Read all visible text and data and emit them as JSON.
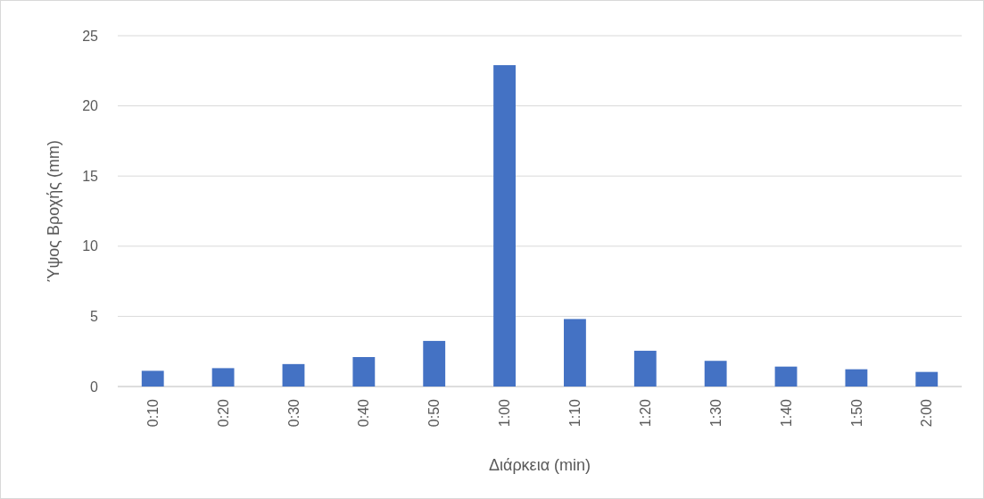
{
  "chart_data": {
    "type": "bar",
    "xlabel": "Διάρκεια (min)",
    "ylabel": "Ύψος Βροχής (mm)",
    "categories": [
      "0:10",
      "0:20",
      "0:30",
      "0:40",
      "0:50",
      "1:00",
      "1:10",
      "1:20",
      "1:30",
      "1:40",
      "1:50",
      "2:00"
    ],
    "values": [
      1.12,
      1.31,
      1.6,
      2.1,
      3.25,
      22.9,
      4.81,
      2.55,
      1.83,
      1.42,
      1.23,
      1.04
    ],
    "color": "#4472c4",
    "ylim": [
      0,
      25
    ],
    "yticks": [
      0,
      5,
      10,
      15,
      20,
      25
    ],
    "grid": "y"
  }
}
